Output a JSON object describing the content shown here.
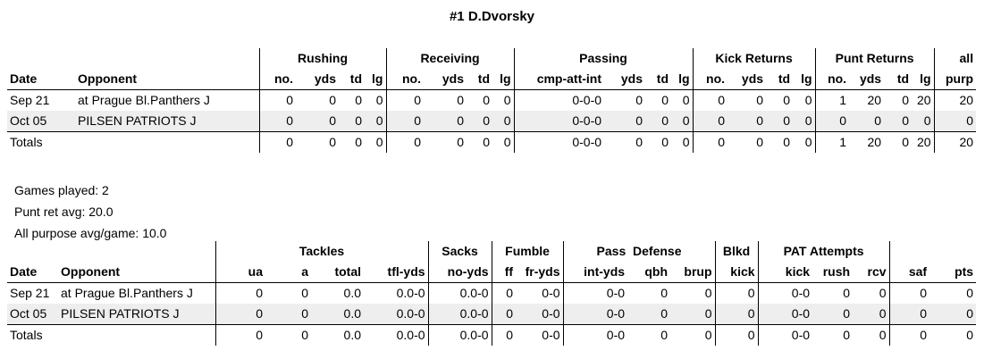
{
  "title": "#1 D.Dvorsky",
  "table1": {
    "groups": [
      "Rushing",
      "Receiving",
      "Passing",
      "Kick Returns",
      "Punt Returns",
      "all"
    ],
    "headers": [
      "Date",
      "Opponent",
      "no.",
      "yds",
      "td",
      "lg",
      "no.",
      "yds",
      "td",
      "lg",
      "cmp-att-int",
      "yds",
      "td",
      "lg",
      "no.",
      "yds",
      "td",
      "lg",
      "no.",
      "yds",
      "td",
      "lg",
      "purp"
    ],
    "rows": [
      [
        "Sep 21",
        "at Prague Bl.Panthers J",
        "0",
        "0",
        "0",
        "0",
        "0",
        "0",
        "0",
        "0",
        "0-0-0",
        "0",
        "0",
        "0",
        "0",
        "0",
        "0",
        "0",
        "1",
        "20",
        "0",
        "20",
        "20"
      ],
      [
        "Oct 05",
        "PILSEN PATRIOTS J",
        "0",
        "0",
        "0",
        "0",
        "0",
        "0",
        "0",
        "0",
        "0-0-0",
        "0",
        "0",
        "0",
        "0",
        "0",
        "0",
        "0",
        "0",
        "0",
        "0",
        "0",
        "0"
      ]
    ],
    "totals": [
      "Totals",
      "",
      "0",
      "0",
      "0",
      "0",
      "0",
      "0",
      "0",
      "0",
      "0-0-0",
      "0",
      "0",
      "0",
      "0",
      "0",
      "0",
      "0",
      "1",
      "20",
      "0",
      "20",
      "20"
    ]
  },
  "notes": {
    "games_played": "Games played: 2",
    "punt_ret_avg": "Punt ret avg: 20.0",
    "all_purpose_avg": "All purpose avg/game: 10.0"
  },
  "table2": {
    "groups": [
      "Tackles",
      "Sacks",
      "Fumble",
      "Pass  Defense",
      "Blkd",
      "PAT Attempts"
    ],
    "headers": [
      "Date",
      "Opponent",
      "ua",
      "a",
      "total",
      "tfl-yds",
      "no-yds",
      "ff",
      "fr-yds",
      "int-yds",
      "qbh",
      "brup",
      "kick",
      "kick",
      "rush",
      "rcv",
      "saf",
      "pts"
    ],
    "rows": [
      [
        "Sep 21",
        "at Prague Bl.Panthers J",
        "0",
        "0",
        "0.0",
        "0.0-0",
        "0.0-0",
        "0",
        "0-0",
        "0-0",
        "0",
        "0",
        "0",
        "0-0",
        "0",
        "0",
        "0",
        "0"
      ],
      [
        "Oct 05",
        "PILSEN PATRIOTS J",
        "0",
        "0",
        "0.0",
        "0.0-0",
        "0.0-0",
        "0",
        "0-0",
        "0-0",
        "0",
        "0",
        "0",
        "0-0",
        "0",
        "0",
        "0",
        "0"
      ]
    ],
    "totals": [
      "Totals",
      "",
      "0",
      "0",
      "0.0",
      "0.0-0",
      "0.0-0",
      "0",
      "0-0",
      "0-0",
      "0",
      "0",
      "0",
      "0-0",
      "0",
      "0",
      "0",
      "0"
    ]
  }
}
